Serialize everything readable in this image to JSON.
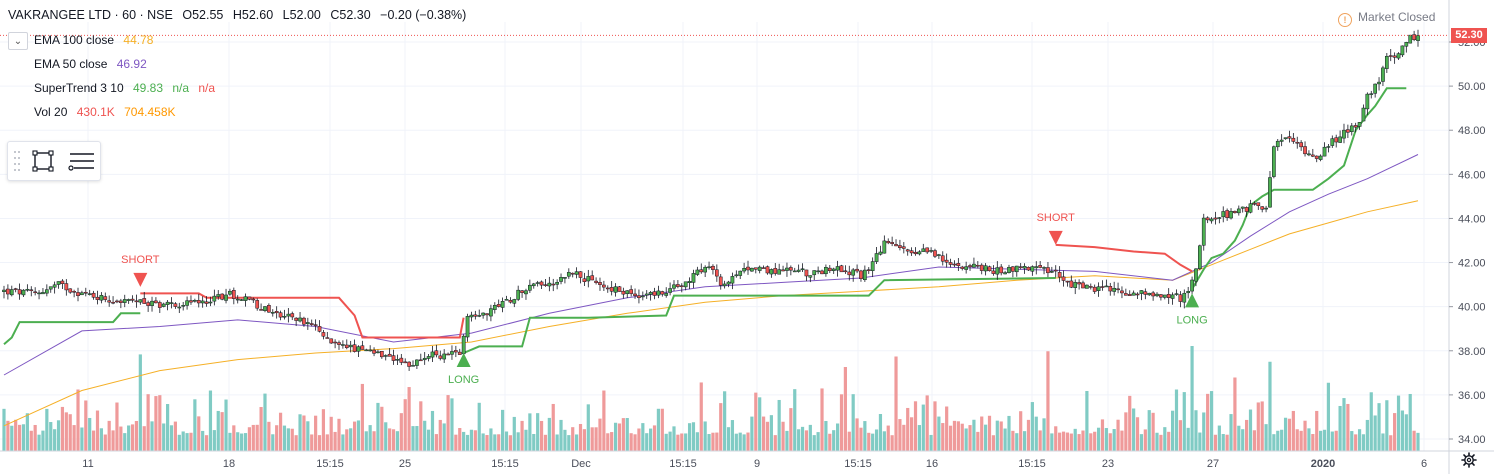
{
  "header": {
    "symbol": "VAKRANGEE LTD · 60 · NSE",
    "o_label": "O",
    "o_value": "52.55",
    "h_label": "H",
    "h_value": "52.60",
    "l_label": "L",
    "l_value": "52.00",
    "c_label": "C",
    "c_value": "52.30",
    "change": "−0.20 (−0.38%)"
  },
  "legend": {
    "ema100": {
      "label": "EMA 100 close",
      "value": "44.78",
      "color": "#f5b027"
    },
    "ema50": {
      "label": "EMA 50 close",
      "value": "46.92",
      "color": "#7e57c2"
    },
    "supertrend": {
      "label": "SuperTrend 3 10",
      "value": "49.83",
      "na1": "n/a",
      "na2": "n/a",
      "up_color": "#4caf50",
      "down_color": "#ef5350"
    },
    "volume": {
      "label": "Vol 20",
      "value": "430.1K",
      "ma": "704.458K",
      "value_color": "#ef5350",
      "ma_color": "#ff9800"
    }
  },
  "status": {
    "market": "Market Closed"
  },
  "last_price": "52.30",
  "chart_data": {
    "type": "candlestick",
    "symbol": "VAKRANGEE LTD",
    "interval": "60",
    "exchange": "NSE",
    "y_ticks": [
      "52.00",
      "50.00",
      "48.00",
      "46.00",
      "44.00",
      "42.00",
      "40.00",
      "38.00",
      "36.00",
      "34.00"
    ],
    "ylim": [
      33.8,
      53.0
    ],
    "x_ticks": [
      "11",
      "18",
      "15:15",
      "25",
      "15:15",
      "Dec",
      "15:15",
      "9",
      "15:15",
      "16",
      "15:15",
      "23",
      "27",
      "2020",
      "6"
    ],
    "last_price": 52.3,
    "price_path": [
      [
        0,
        40.7
      ],
      [
        8,
        40.6
      ],
      [
        14,
        41.0
      ],
      [
        20,
        40.6
      ],
      [
        28,
        40.3
      ],
      [
        34,
        40.2
      ],
      [
        42,
        40.1
      ],
      [
        50,
        40.2
      ],
      [
        58,
        40.6
      ],
      [
        64,
        40.2
      ],
      [
        68,
        39.8
      ],
      [
        72,
        39.6
      ],
      [
        76,
        39.4
      ],
      [
        80,
        39.0
      ],
      [
        84,
        38.4
      ],
      [
        88,
        38.2
      ],
      [
        92,
        38.0
      ],
      [
        96,
        37.8
      ],
      [
        100,
        37.5
      ],
      [
        104,
        37.3
      ],
      [
        108,
        37.8
      ],
      [
        112,
        37.8
      ],
      [
        114,
        37.8
      ],
      [
        117,
        38.0
      ],
      [
        119,
        39.6
      ],
      [
        123,
        39.7
      ],
      [
        127,
        40.0
      ],
      [
        131,
        40.5
      ],
      [
        135,
        41.0
      ],
      [
        141,
        41.1
      ],
      [
        146,
        41.6
      ],
      [
        150,
        41.2
      ],
      [
        154,
        40.9
      ],
      [
        158,
        40.7
      ],
      [
        162,
        40.6
      ],
      [
        166,
        40.5
      ],
      [
        170,
        40.7
      ],
      [
        174,
        41.0
      ],
      [
        178,
        41.6
      ],
      [
        182,
        41.7
      ],
      [
        184,
        41.0
      ],
      [
        188,
        41.3
      ],
      [
        192,
        41.9
      ],
      [
        196,
        41.6
      ],
      [
        200,
        41.7
      ],
      [
        204,
        41.6
      ],
      [
        208,
        41.5
      ],
      [
        212,
        41.8
      ],
      [
        216,
        41.6
      ],
      [
        220,
        41.4
      ],
      [
        222,
        41.8
      ],
      [
        226,
        42.9
      ],
      [
        230,
        42.6
      ],
      [
        234,
        42.3
      ],
      [
        238,
        42.6
      ],
      [
        242,
        41.9
      ],
      [
        246,
        41.9
      ],
      [
        250,
        41.8
      ],
      [
        254,
        41.6
      ],
      [
        258,
        41.7
      ],
      [
        262,
        41.8
      ],
      [
        266,
        41.7
      ],
      [
        270,
        41.5
      ],
      [
        272,
        41.3
      ],
      [
        274,
        41.0
      ],
      [
        278,
        40.9
      ],
      [
        282,
        40.8
      ],
      [
        286,
        40.7
      ],
      [
        290,
        40.6
      ],
      [
        294,
        40.6
      ],
      [
        298,
        40.5
      ],
      [
        302,
        40.4
      ],
      [
        304,
        40.8
      ],
      [
        306,
        41.6
      ],
      [
        308,
        43.9
      ],
      [
        312,
        44.1
      ],
      [
        316,
        44.3
      ],
      [
        320,
        44.5
      ],
      [
        324,
        44.6
      ],
      [
        326,
        47.4
      ],
      [
        330,
        47.6
      ],
      [
        334,
        47.1
      ],
      [
        337,
        46.8
      ],
      [
        340,
        47.3
      ],
      [
        344,
        47.9
      ],
      [
        348,
        48.4
      ],
      [
        350,
        49.6
      ],
      [
        353,
        50.3
      ],
      [
        355,
        51.2
      ],
      [
        357,
        51.4
      ],
      [
        359,
        51.8
      ],
      [
        361,
        52.2
      ],
      [
        363,
        52.3
      ]
    ],
    "ema100": [
      [
        0,
        34.6
      ],
      [
        20,
        36.2
      ],
      [
        40,
        37.1
      ],
      [
        60,
        37.6
      ],
      [
        80,
        37.9
      ],
      [
        100,
        38.1
      ],
      [
        120,
        38.4
      ],
      [
        140,
        39.1
      ],
      [
        160,
        39.7
      ],
      [
        180,
        40.2
      ],
      [
        200,
        40.5
      ],
      [
        220,
        40.7
      ],
      [
        240,
        40.9
      ],
      [
        260,
        41.2
      ],
      [
        280,
        41.4
      ],
      [
        300,
        41.2
      ],
      [
        310,
        41.9
      ],
      [
        320,
        42.6
      ],
      [
        330,
        43.3
      ],
      [
        340,
        43.8
      ],
      [
        350,
        44.3
      ],
      [
        363,
        44.8
      ]
    ],
    "ema50": [
      [
        0,
        36.9
      ],
      [
        20,
        38.9
      ],
      [
        40,
        39.1
      ],
      [
        60,
        39.4
      ],
      [
        80,
        39.1
      ],
      [
        100,
        38.4
      ],
      [
        120,
        38.8
      ],
      [
        140,
        39.7
      ],
      [
        160,
        40.4
      ],
      [
        180,
        40.9
      ],
      [
        200,
        41.1
      ],
      [
        220,
        41.3
      ],
      [
        240,
        41.8
      ],
      [
        260,
        41.7
      ],
      [
        280,
        41.6
      ],
      [
        300,
        41.2
      ],
      [
        310,
        42.0
      ],
      [
        320,
        43.2
      ],
      [
        330,
        44.3
      ],
      [
        340,
        45.1
      ],
      [
        350,
        45.8
      ],
      [
        363,
        46.9
      ]
    ],
    "supertrend": [
      {
        "trend": "up",
        "points": [
          [
            0,
            38.3
          ],
          [
            2,
            38.6
          ],
          [
            4,
            39.3
          ],
          [
            28,
            39.3
          ],
          [
            30,
            39.7
          ],
          [
            35,
            39.7
          ]
        ]
      },
      {
        "trend": "down",
        "points": [
          [
            35,
            40.6
          ],
          [
            50,
            40.6
          ],
          [
            52,
            40.4
          ],
          [
            86,
            40.4
          ],
          [
            90,
            39.6
          ],
          [
            92,
            38.6
          ],
          [
            117,
            38.6
          ],
          [
            118,
            39.5
          ]
        ]
      },
      {
        "trend": "up",
        "points": [
          [
            118,
            37.9
          ],
          [
            122,
            38.2
          ],
          [
            133,
            38.2
          ],
          [
            135,
            39.5
          ],
          [
            150,
            39.5
          ],
          [
            170,
            39.6
          ],
          [
            172,
            40.5
          ],
          [
            182,
            40.5
          ],
          [
            222,
            40.5
          ],
          [
            226,
            41.2
          ],
          [
            270,
            41.3
          ]
        ]
      },
      {
        "trend": "down",
        "points": [
          [
            270,
            42.8
          ],
          [
            280,
            42.7
          ],
          [
            290,
            42.5
          ],
          [
            298,
            42.4
          ],
          [
            302,
            41.9
          ],
          [
            305,
            41.6
          ]
        ]
      },
      {
        "trend": "up",
        "points": [
          [
            305,
            40.8
          ],
          [
            308,
            41.7
          ],
          [
            310,
            42.2
          ],
          [
            313,
            42.4
          ],
          [
            316,
            43.0
          ],
          [
            318,
            43.7
          ],
          [
            320,
            44.6
          ],
          [
            323,
            45.0
          ],
          [
            326,
            45.3
          ],
          [
            336,
            45.3
          ],
          [
            340,
            45.8
          ],
          [
            344,
            46.4
          ],
          [
            347,
            48.0
          ],
          [
            350,
            48.7
          ],
          [
            352,
            49.1
          ],
          [
            355,
            49.9
          ],
          [
            360,
            49.9
          ]
        ]
      }
    ],
    "signals": [
      {
        "type": "SHORT",
        "x": 35,
        "price": 40.9,
        "label": "SHORT"
      },
      {
        "type": "LONG",
        "x": 118,
        "price": 37.9,
        "label": "LONG"
      },
      {
        "type": "SHORT",
        "x": 270,
        "price": 42.8,
        "label": "SHORT"
      },
      {
        "type": "LONG",
        "x": 305,
        "price": 40.6,
        "label": "LONG"
      }
    ],
    "colors": {
      "up": "#4caf50",
      "down": "#ef5350",
      "vol_up": "#80cbc4",
      "vol_down": "#ef9a9a",
      "ema100": "#f5b027",
      "ema50": "#7e57c2",
      "grid": "#f0f3fa",
      "axis_text": "#4a4e5a",
      "price_line": "#ef5350"
    },
    "volume_spikes": [
      {
        "x": 35,
        "v": 0.92
      },
      {
        "x": 216,
        "v": 0.8
      },
      {
        "x": 229,
        "v": 0.9
      },
      {
        "x": 268,
        "v": 0.95
      },
      {
        "x": 305,
        "v": 1.0
      },
      {
        "x": 316,
        "v": 0.7
      },
      {
        "x": 325,
        "v": 0.85
      },
      {
        "x": 340,
        "v": 0.65
      }
    ]
  }
}
